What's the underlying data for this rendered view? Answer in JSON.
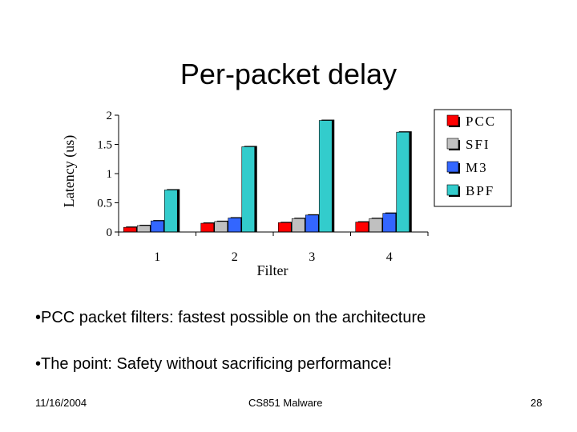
{
  "slide": {
    "title": "Per-packet delay",
    "bullets": [
      "•PCC packet filters: fastest possible on the architecture",
      "•The point: Safety without sacrificing performance!"
    ],
    "footer": {
      "date": "11/16/2004",
      "course": "CS851 Malware",
      "page": "28"
    }
  },
  "chart_data": {
    "type": "bar",
    "title": "",
    "xlabel": "Filter",
    "ylabel": "Latency (us)",
    "categories": [
      "1",
      "2",
      "3",
      "4"
    ],
    "ylim": [
      0,
      2
    ],
    "yticks": [
      "0",
      "0.5",
      "1",
      "1.5",
      "2"
    ],
    "grid": false,
    "legend_position": "top-right",
    "series": [
      {
        "name": "PCC",
        "color": "#ff0000",
        "values": [
          0.08,
          0.15,
          0.16,
          0.17
        ]
      },
      {
        "name": "SFI",
        "color": "#c0c0c0",
        "values": [
          0.11,
          0.18,
          0.23,
          0.23
        ]
      },
      {
        "name": "M3",
        "color": "#3366ff",
        "values": [
          0.19,
          0.24,
          0.29,
          0.32
        ]
      },
      {
        "name": "BPF",
        "color": "#33cccc",
        "values": [
          0.72,
          1.46,
          1.91,
          1.71
        ]
      }
    ]
  }
}
